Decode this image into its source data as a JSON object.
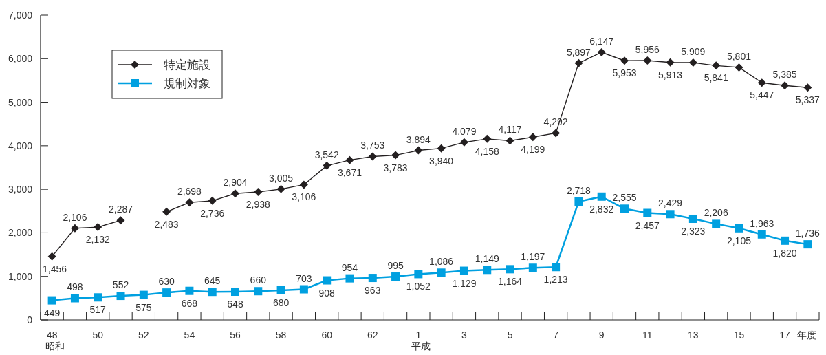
{
  "chart_data": {
    "type": "line",
    "xlabel": "年度",
    "categories": [
      "48\n昭和",
      null,
      "50",
      null,
      "52",
      null,
      "54",
      null,
      "56",
      null,
      "58",
      null,
      "60",
      null,
      "62",
      null,
      "1\n平成",
      null,
      "3",
      null,
      "5",
      null,
      "7",
      null,
      "9",
      null,
      "11",
      null,
      "13",
      null,
      "15",
      null,
      "17",
      null
    ],
    "series": [
      {
        "name": "特定施設",
        "color": "#231f20",
        "marker": "diamond",
        "values": [
          1456,
          2106,
          2132,
          2287,
          null,
          2483,
          2698,
          2736,
          2904,
          2938,
          3005,
          3106,
          3542,
          3671,
          3753,
          3783,
          3894,
          3940,
          4079,
          4158,
          4117,
          4199,
          4292,
          5897,
          6147,
          5953,
          5956,
          5913,
          5909,
          5841,
          5801,
          5447,
          5385,
          5337
        ],
        "value_labels": [
          "1,456",
          "2,106",
          "2,132",
          "2,287",
          null,
          "2,483",
          "2,698",
          "2,736",
          "2,904",
          "2,938",
          "3,005",
          "3,106",
          "3,542",
          "3,671",
          "3,753",
          "3,783",
          "3,894",
          "3,940",
          "4,079",
          "4,158",
          "4,117",
          "4,199",
          "4,292",
          "5,897",
          "6,147",
          "5,953",
          "5,956",
          "5,913",
          "5,909",
          "5,841",
          "5,801",
          "5,447",
          "5,385",
          "5,337"
        ]
      },
      {
        "name": "規制対象",
        "color": "#00a0e0",
        "marker": "square",
        "values": [
          449,
          498,
          517,
          552,
          575,
          630,
          668,
          645,
          648,
          660,
          680,
          703,
          908,
          954,
          963,
          995,
          1052,
          1086,
          1129,
          1149,
          1164,
          1197,
          1213,
          2718,
          2832,
          2555,
          2457,
          2429,
          2323,
          2206,
          2105,
          1963,
          1820,
          1736
        ],
        "value_labels": [
          "449",
          "498",
          "517",
          "552",
          "575",
          "630",
          "668",
          "645",
          "648",
          "660",
          "680",
          "703",
          "908",
          "954",
          "963",
          "995",
          "1,052",
          "1,086",
          "1,129",
          "1,149",
          "1,164",
          "1,197",
          "1,213",
          "2,718",
          "2,832",
          "2,555",
          "2,457",
          "2,429",
          "2,323",
          "2,206",
          "2,105",
          "1,963",
          "1,820",
          "1,736"
        ]
      }
    ],
    "ylim": [
      0,
      7000
    ],
    "yticks": [
      0,
      {
        "value": 1000,
        "label": "1,000"
      },
      {
        "value": 2000,
        "label": "2,000"
      },
      {
        "value": 3000,
        "label": "3,000"
      },
      {
        "value": 4000,
        "label": "4,000"
      },
      {
        "value": 5000,
        "label": "5,000"
      },
      {
        "value": 6000,
        "label": "6,000"
      },
      {
        "value": 7000,
        "label": "7,000"
      }
    ],
    "grid": false,
    "legend": "top left"
  }
}
